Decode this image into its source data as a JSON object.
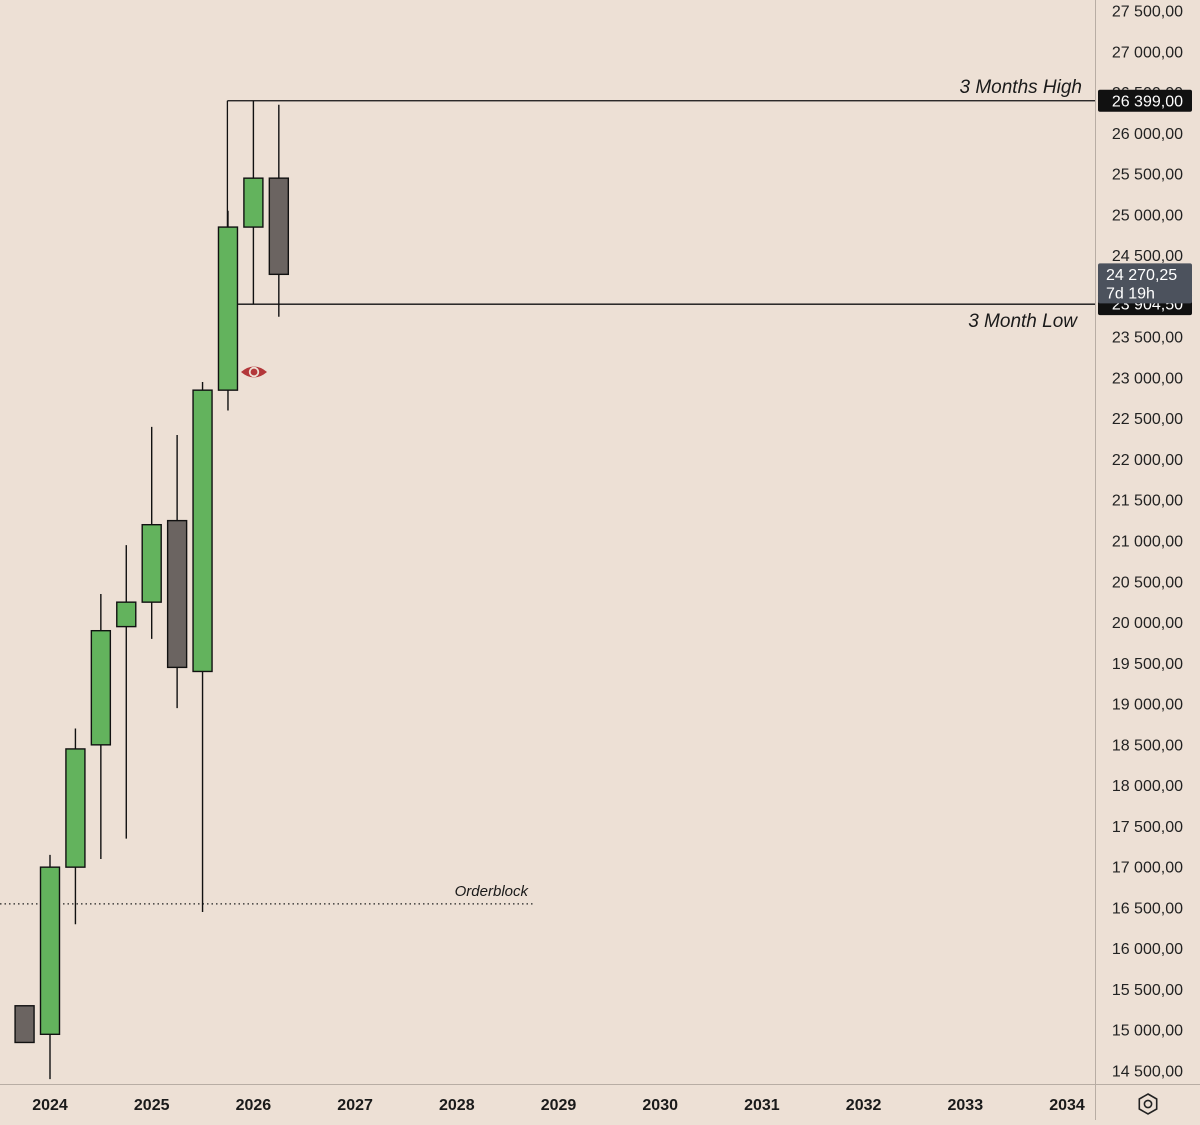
{
  "chart_data": {
    "type": "candlestick",
    "title": "",
    "xlabel": "",
    "ylabel": "",
    "ylim": [
      14400,
      27650
    ],
    "x_tick_labels": [
      "2024",
      "2025",
      "2026",
      "2027",
      "2028",
      "2029",
      "2030",
      "2031",
      "2032",
      "2033",
      "2034"
    ],
    "y_tick_labels": [
      "27 500,00",
      "27 000,00",
      "26 500,00",
      "26 000,00",
      "25 500,00",
      "25 000,00",
      "24 500,00",
      "23 500,00",
      "23 000,00",
      "22 500,00",
      "22 000,00",
      "21 500,00",
      "21 000,00",
      "20 500,00",
      "20 000,00",
      "19 500,00",
      "19 000,00",
      "18 500,00",
      "18 000,00",
      "17 500,00",
      "17 000,00",
      "16 500,00",
      "16 000,00",
      "15 500,00",
      "15 000,00",
      "14 500,00"
    ],
    "y_tick_values": [
      27500,
      27000,
      26500,
      26000,
      25500,
      25000,
      24500,
      23500,
      23000,
      22500,
      22000,
      21500,
      21000,
      20500,
      20000,
      19500,
      19000,
      18500,
      18000,
      17500,
      17000,
      16500,
      16000,
      15500,
      15000,
      14500
    ],
    "candle_period": "3 months",
    "candles": [
      {
        "date": "2023-10",
        "open": 15300,
        "high": 15300,
        "low": 14850,
        "close": 14850,
        "direction": "down"
      },
      {
        "date": "2024-01",
        "open": 14950,
        "high": 17150,
        "low": 14400,
        "close": 17000,
        "direction": "up"
      },
      {
        "date": "2024-04",
        "open": 17000,
        "high": 18700,
        "low": 16300,
        "close": 18450,
        "direction": "up"
      },
      {
        "date": "2024-07",
        "open": 18500,
        "high": 20350,
        "low": 17100,
        "close": 19900,
        "direction": "up"
      },
      {
        "date": "2024-10",
        "open": 19950,
        "high": 20950,
        "low": 17350,
        "close": 20250,
        "direction": "up"
      },
      {
        "date": "2025-01",
        "open": 20250,
        "high": 22400,
        "low": 19800,
        "close": 21200,
        "direction": "up"
      },
      {
        "date": "2025-04",
        "open": 21250,
        "high": 22300,
        "low": 18950,
        "close": 19450,
        "direction": "down"
      },
      {
        "date": "2025-07",
        "open": 19400,
        "high": 22950,
        "low": 16450,
        "close": 22850,
        "direction": "up"
      },
      {
        "date": "2025-10",
        "open": 22850,
        "high": 25050,
        "low": 22600,
        "close": 24850,
        "direction": "up"
      },
      {
        "date": "2026-01",
        "open": 24850,
        "high": 26399,
        "low": 23904.5,
        "close": 25450,
        "direction": "up"
      },
      {
        "date": "2026-04",
        "open": 25450,
        "high": 26350,
        "low": 23750,
        "close": 24270.25,
        "direction": "down"
      }
    ],
    "levels": [
      {
        "label": "3 Months High",
        "value": 26399.0,
        "price_label": "26 399,00",
        "style": "solid"
      },
      {
        "label": "3 Month Low",
        "value": 23904.5,
        "price_label": "23 904,50",
        "style": "solid"
      },
      {
        "label": "Orderblock",
        "value": 16550,
        "style": "dotted"
      }
    ],
    "current_price": {
      "value": 24270.25,
      "label": "24 270,25",
      "countdown": "7d 19h"
    },
    "colors": {
      "background": "#ede0d5",
      "up_candle": "#63b35d",
      "down_candle": "#6b6461",
      "candle_border": "#111111",
      "price_tag": "#111111",
      "current_tag": "#4c525d",
      "eye_icon": "#b3373a"
    },
    "grid": false,
    "legend": "none"
  },
  "icons": {
    "marker": "eye-icon",
    "settings": "gear-icon"
  }
}
